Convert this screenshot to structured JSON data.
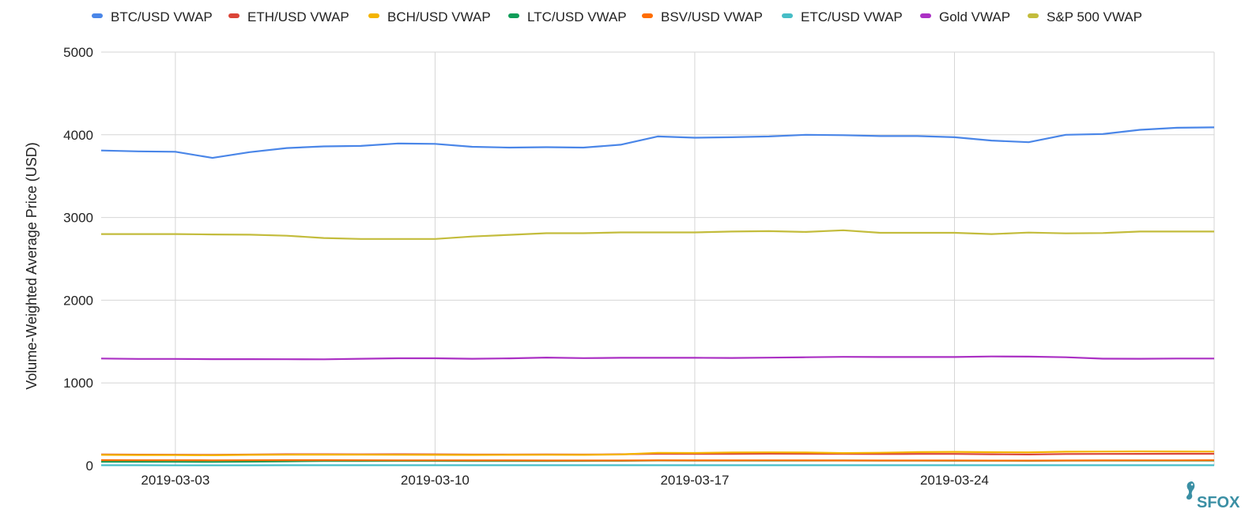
{
  "chart_data": {
    "type": "line",
    "xlabel": "",
    "ylabel": "Volume-Weighted Average Price (USD)",
    "ylim": [
      0,
      5000
    ],
    "yticks": [
      0,
      1000,
      2000,
      3000,
      4000,
      5000
    ],
    "x": [
      "2019-03-01",
      "2019-03-02",
      "2019-03-03",
      "2019-03-04",
      "2019-03-05",
      "2019-03-06",
      "2019-03-07",
      "2019-03-08",
      "2019-03-09",
      "2019-03-10",
      "2019-03-11",
      "2019-03-12",
      "2019-03-13",
      "2019-03-14",
      "2019-03-15",
      "2019-03-16",
      "2019-03-17",
      "2019-03-18",
      "2019-03-19",
      "2019-03-20",
      "2019-03-21",
      "2019-03-22",
      "2019-03-23",
      "2019-03-24",
      "2019-03-25",
      "2019-03-26",
      "2019-03-27",
      "2019-03-28",
      "2019-03-29",
      "2019-03-30",
      "2019-03-31"
    ],
    "xticks": [
      "2019-03-03",
      "2019-03-10",
      "2019-03-17",
      "2019-03-24"
    ],
    "grid": true,
    "legend_position": "top",
    "series": [
      {
        "name": "BTC/USD VWAP",
        "color": "#4a86e8",
        "values": [
          3810,
          3800,
          3795,
          3720,
          3790,
          3840,
          3860,
          3865,
          3895,
          3890,
          3855,
          3845,
          3850,
          3845,
          3880,
          3980,
          3965,
          3970,
          3980,
          4000,
          3995,
          3985,
          3985,
          3970,
          3930,
          3910,
          4000,
          4010,
          4060,
          4085,
          4090
        ]
      },
      {
        "name": "ETH/USD VWAP",
        "color": "#db4437",
        "values": [
          135,
          133,
          132,
          130,
          134,
          137,
          137,
          136,
          137,
          136,
          134,
          134,
          135,
          134,
          137,
          143,
          141,
          142,
          144,
          143,
          141,
          140,
          141,
          141,
          137,
          135,
          140,
          141,
          142,
          143,
          143
        ]
      },
      {
        "name": "BCH/USD VWAP",
        "color": "#f4b400",
        "values": [
          130,
          128,
          127,
          125,
          130,
          132,
          133,
          132,
          131,
          130,
          129,
          130,
          131,
          130,
          135,
          155,
          153,
          158,
          160,
          158,
          152,
          156,
          163,
          166,
          162,
          160,
          168,
          170,
          172,
          171,
          170
        ]
      },
      {
        "name": "LTC/USD VWAP",
        "color": "#0f9d58",
        "values": [
          47,
          47,
          46,
          45,
          48,
          52,
          55,
          56,
          57,
          57,
          56,
          56,
          56,
          57,
          58,
          62,
          61,
          60,
          60,
          61,
          62,
          61,
          60,
          59,
          59,
          58,
          60,
          60,
          61,
          60,
          60
        ]
      },
      {
        "name": "BSV/USD VWAP",
        "color": "#ff6d01",
        "values": [
          66,
          65,
          65,
          64,
          65,
          66,
          66,
          65,
          64,
          64,
          63,
          63,
          62,
          62,
          62,
          64,
          63,
          63,
          64,
          63,
          62,
          62,
          62,
          62,
          61,
          61,
          62,
          63,
          64,
          64,
          65
        ]
      },
      {
        "name": "ETC/USD VWAP",
        "color": "#46bdc6",
        "values": [
          4.3,
          4.3,
          4.2,
          4.0,
          4.2,
          4.3,
          4.3,
          4.3,
          4.4,
          4.3,
          4.3,
          4.3,
          4.3,
          4.3,
          4.4,
          4.6,
          4.6,
          4.6,
          4.7,
          4.7,
          4.7,
          4.6,
          4.6,
          4.6,
          4.5,
          4.4,
          4.6,
          4.6,
          4.7,
          4.7,
          4.7
        ]
      },
      {
        "name": "Gold VWAP",
        "color": "#ab30c4",
        "values": [
          1295,
          1290,
          1290,
          1287,
          1287,
          1286,
          1285,
          1292,
          1298,
          1298,
          1292,
          1297,
          1306,
          1300,
          1303,
          1303,
          1303,
          1302,
          1305,
          1310,
          1315,
          1313,
          1313,
          1313,
          1320,
          1318,
          1310,
          1293,
          1292,
          1295,
          1295
        ]
      },
      {
        "name": "S&P 500 VWAP",
        "color": "#c3bc3c",
        "values": [
          2800,
          2800,
          2800,
          2795,
          2792,
          2780,
          2752,
          2740,
          2740,
          2740,
          2770,
          2790,
          2810,
          2810,
          2820,
          2820,
          2820,
          2830,
          2835,
          2825,
          2845,
          2815,
          2815,
          2815,
          2800,
          2818,
          2808,
          2812,
          2830,
          2830,
          2830
        ]
      }
    ]
  },
  "brand": {
    "name": "SFOX",
    "icon": "seahorse-icon"
  }
}
